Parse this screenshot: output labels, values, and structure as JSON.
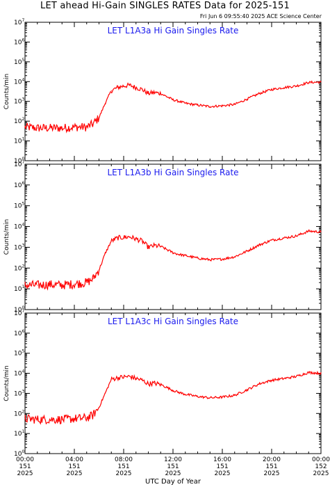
{
  "figure": {
    "title": "LET ahead Hi-Gain SINGLES RATES Data for 2025-151",
    "timestamp": "Fri Jun  6 09:55:40 2025 ACE Science Center",
    "x_axis_title": "UTC Day of Year"
  },
  "colors": {
    "series": "#ff0000",
    "panel_title": "#1a1aee",
    "axis": "#000000"
  },
  "chart_data": [
    {
      "type": "line",
      "title": "LET L1A3a Hi Gain Singles Rate",
      "ylabel": "Counts/min",
      "yscale": "log",
      "ylim": [
        1,
        10000000
      ],
      "y_tick_labels": [
        {
          "base": "10",
          "exp": "0"
        },
        {
          "base": "10",
          "exp": "1"
        },
        {
          "base": "10",
          "exp": "2"
        },
        {
          "base": "10",
          "exp": "3"
        },
        {
          "base": "10",
          "exp": "4"
        },
        {
          "base": "10",
          "exp": "5"
        },
        {
          "base": "10",
          "exp": "6"
        },
        {
          "base": "10",
          "exp": "7"
        }
      ],
      "x_hours": [
        0,
        1,
        2,
        3,
        4,
        5,
        5.5,
        6,
        6.5,
        7,
        7.5,
        8,
        8.5,
        9,
        9.5,
        10,
        10.5,
        11,
        12,
        12.5,
        13,
        14,
        15,
        16,
        17,
        18,
        19,
        20,
        21,
        22,
        23,
        24
      ],
      "values": [
        50,
        45,
        45,
        45,
        50,
        50,
        70,
        150,
        800,
        3500,
        5000,
        6000,
        6500,
        5000,
        4000,
        2500,
        2800,
        2500,
        1200,
        1000,
        800,
        650,
        550,
        600,
        700,
        1300,
        2500,
        4000,
        5000,
        6000,
        9000,
        9500
      ]
    },
    {
      "type": "line",
      "title": "LET L1A3b Hi Gain Singles Rate",
      "ylabel": "Counts/min",
      "yscale": "log",
      "ylim": [
        1,
        10000000
      ],
      "y_tick_labels": [
        {
          "base": "10",
          "exp": "0"
        },
        {
          "base": "10",
          "exp": "1"
        },
        {
          "base": "10",
          "exp": "2"
        },
        {
          "base": "10",
          "exp": "3"
        },
        {
          "base": "10",
          "exp": "4"
        },
        {
          "base": "10",
          "exp": "5"
        },
        {
          "base": "10",
          "exp": "6"
        },
        {
          "base": "10",
          "exp": "7"
        }
      ],
      "x_hours": [
        0,
        1,
        2,
        3,
        4,
        5,
        5.5,
        6,
        6.5,
        7,
        7.5,
        8,
        8.5,
        9,
        9.5,
        10,
        10.5,
        11,
        12,
        12.5,
        13,
        14,
        15,
        16,
        17,
        18,
        19,
        20,
        21,
        22,
        23,
        24
      ],
      "values": [
        15,
        15,
        16,
        15,
        17,
        20,
        30,
        80,
        500,
        2000,
        2800,
        3000,
        3200,
        2500,
        2000,
        1000,
        1200,
        1100,
        550,
        450,
        400,
        300,
        250,
        270,
        350,
        650,
        1300,
        2200,
        2800,
        3500,
        6000,
        5500
      ]
    },
    {
      "type": "line",
      "title": "LET L1A3c Hi Gain Singles Rate",
      "ylabel": "Counts/min",
      "yscale": "log",
      "ylim": [
        1,
        10000000
      ],
      "y_tick_labels": [
        {
          "base": "10",
          "exp": "0"
        },
        {
          "base": "10",
          "exp": "1"
        },
        {
          "base": "10",
          "exp": "2"
        },
        {
          "base": "10",
          "exp": "3"
        },
        {
          "base": "10",
          "exp": "4"
        },
        {
          "base": "10",
          "exp": "5"
        },
        {
          "base": "10",
          "exp": "6"
        },
        {
          "base": "10",
          "exp": "7"
        }
      ],
      "x_hours": [
        0,
        1,
        2,
        3,
        4,
        5,
        5.5,
        6,
        6.5,
        7,
        7.5,
        8,
        8.5,
        9,
        9.5,
        10,
        10.5,
        11,
        12,
        12.5,
        13,
        14,
        15,
        16,
        17,
        18,
        19,
        20,
        21,
        22,
        23,
        24
      ],
      "values": [
        55,
        50,
        50,
        50,
        55,
        60,
        80,
        200,
        1000,
        5000,
        6000,
        6500,
        7000,
        5500,
        4500,
        3000,
        3200,
        2800,
        1400,
        1100,
        900,
        700,
        600,
        650,
        800,
        1500,
        3000,
        4500,
        5500,
        7000,
        11000,
        10000
      ]
    }
  ],
  "x_axis": {
    "tick_labels": [
      {
        "time": "00:00",
        "day": "151",
        "year": "2025"
      },
      {
        "time": "04:00",
        "day": "151",
        "year": "2025"
      },
      {
        "time": "08:00",
        "day": "151",
        "year": "2025"
      },
      {
        "time": "12:00",
        "day": "151",
        "year": "2025"
      },
      {
        "time": "16:00",
        "day": "151",
        "year": "2025"
      },
      {
        "time": "20:00",
        "day": "151",
        "year": "2025"
      },
      {
        "time": "00:00",
        "day": "152",
        "year": "2025"
      }
    ],
    "label_hours": [
      0,
      4,
      8,
      12,
      16,
      20,
      24
    ]
  }
}
